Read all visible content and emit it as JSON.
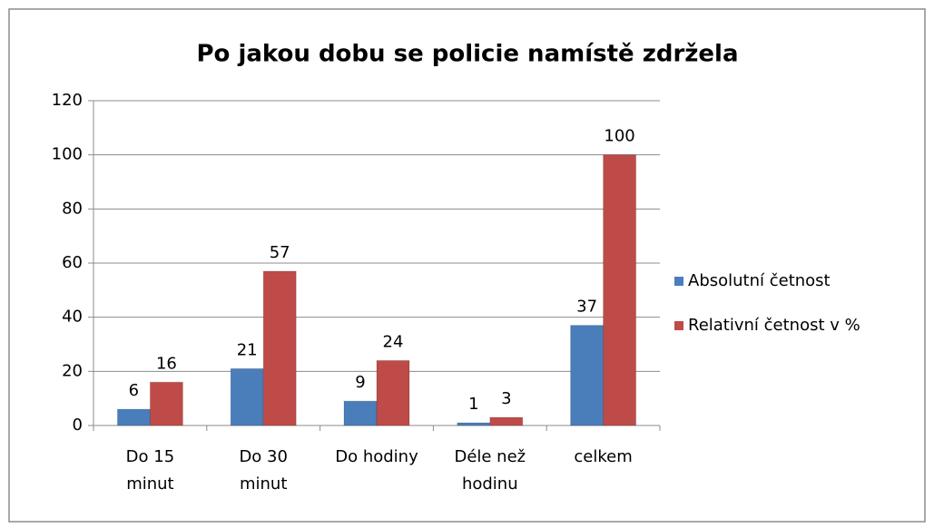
{
  "chart_data": {
    "type": "bar",
    "title": "Po jakou dobu se policie namístě zdržela",
    "categories": [
      "Do 15 minut",
      "Do 30 minut",
      "Do hodiny",
      "Déle než hodinu",
      "celkem"
    ],
    "series": [
      {
        "name": "Absolutní četnost",
        "color": "#4a7ebb",
        "values": [
          6,
          21,
          9,
          1,
          37
        ]
      },
      {
        "name": "Relativní četnost v %",
        "color": "#be4b48",
        "values": [
          16,
          57,
          24,
          3,
          100
        ]
      }
    ],
    "ylim": [
      0,
      120
    ],
    "yticks": [
      0,
      20,
      40,
      60,
      80,
      100,
      120
    ],
    "grid": true,
    "legend": "right"
  }
}
